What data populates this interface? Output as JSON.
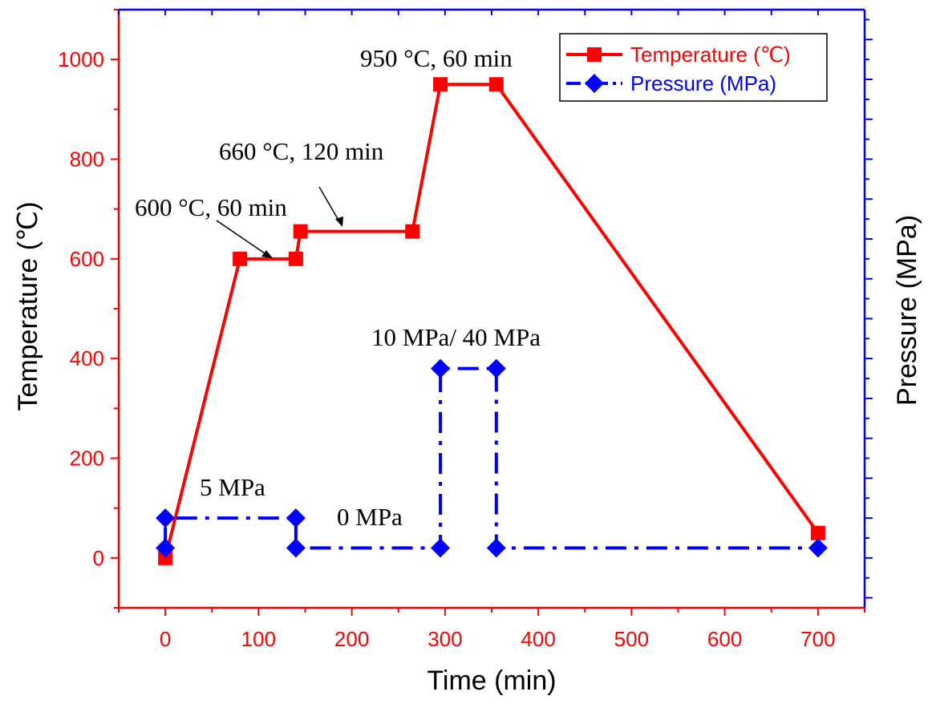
{
  "chart_data": {
    "type": "line",
    "xlabel": "Time (min)",
    "ylabel_left": "Temperature (℃)",
    "ylabel_right": "Pressure (MPa)",
    "xlim": [
      -50,
      750
    ],
    "ylim_left": [
      -100,
      1100
    ],
    "x_ticks": [
      0,
      100,
      200,
      300,
      400,
      500,
      600,
      700
    ],
    "y_ticks_left": [
      0,
      200,
      400,
      600,
      800,
      1000
    ],
    "series": [
      {
        "name": "Temperature (℃)",
        "axis": "left",
        "color": "#ff0000",
        "style": "solid",
        "marker": "square",
        "x": [
          0,
          80,
          140,
          145,
          265,
          295,
          355,
          700
        ],
        "y": [
          0,
          600,
          600,
          655,
          655,
          950,
          950,
          50
        ]
      },
      {
        "name": "Pressure (MPa)",
        "axis": "right",
        "color": "#0000ff",
        "style": "dash-dot",
        "marker": "diamond",
        "x": [
          0,
          0,
          140,
          140,
          295,
          295,
          355,
          355,
          700
        ],
        "y": [
          20,
          80,
          80,
          20,
          20,
          380,
          380,
          20,
          20
        ]
      }
    ],
    "annotations": [
      {
        "text": "950 °C, 60 min"
      },
      {
        "text": "660 °C, 120 min"
      },
      {
        "text": "600 °C, 60 min"
      },
      {
        "text": "10 MPa/ 40 MPa"
      },
      {
        "text": "5 MPa"
      },
      {
        "text": "0 MPa"
      }
    ],
    "legend_position": "top-right"
  }
}
